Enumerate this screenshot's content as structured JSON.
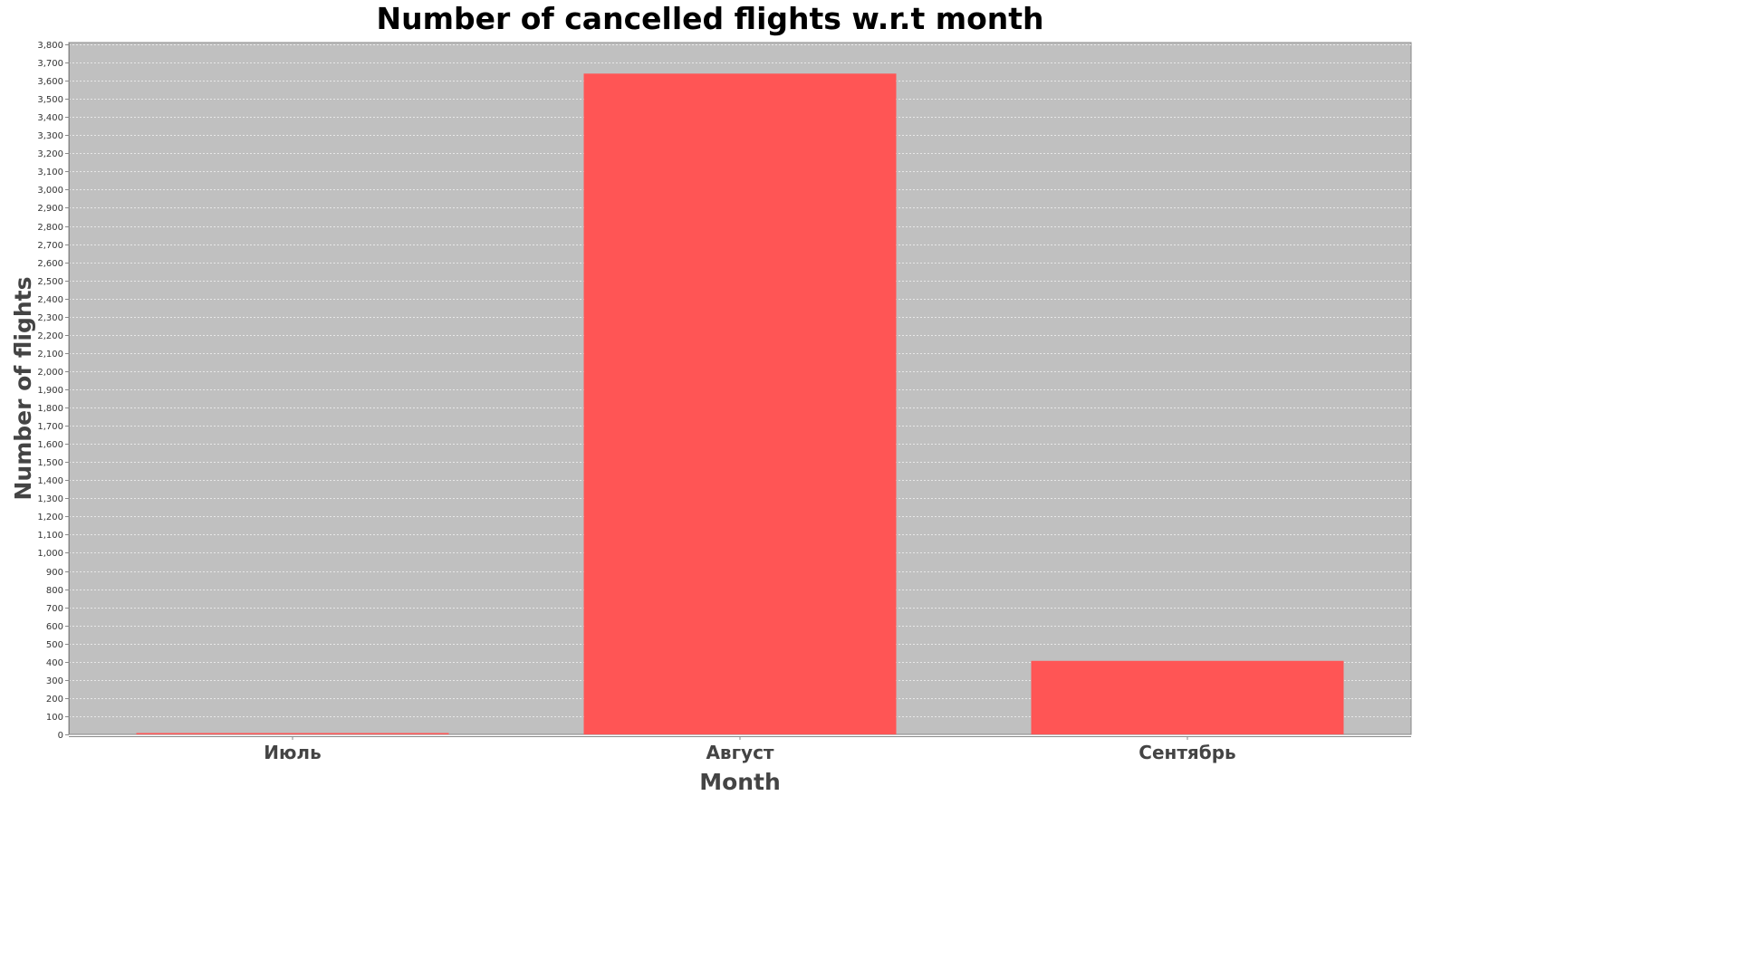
{
  "chart_data": {
    "type": "bar",
    "title": "Number of cancelled flights w.r.t month",
    "xlabel": "Month",
    "ylabel": "Number of flights",
    "categories": [
      "Июль",
      "Август",
      "Сентябрь"
    ],
    "values": [
      3,
      3639,
      405
    ],
    "ylim": [
      0,
      3810
    ],
    "y_tick_step": 100,
    "grid": true,
    "legend": "none",
    "colors": {
      "bar": "#ff5555",
      "plot_background": "#c0c0c0",
      "gridline": "#ffffff"
    }
  }
}
